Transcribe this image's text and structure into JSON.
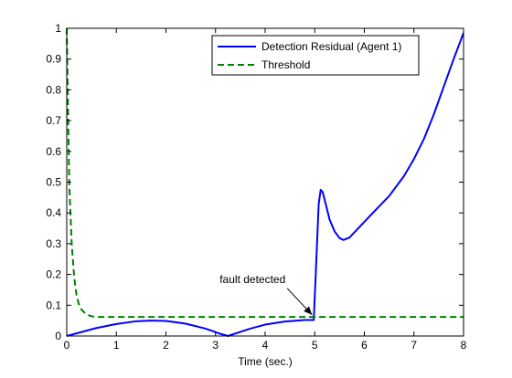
{
  "chart_data": {
    "type": "line",
    "title": "",
    "xlabel": "Time (sec.)",
    "ylabel": "",
    "xlim": [
      0,
      8
    ],
    "ylim": [
      0,
      1
    ],
    "xticks": [
      0,
      1,
      2,
      3,
      4,
      5,
      6,
      7,
      8
    ],
    "xtick_labels": [
      "0",
      "1",
      "2",
      "3",
      "4",
      "5",
      "6",
      "7",
      "8"
    ],
    "yticks": [
      0,
      0.1,
      0.2,
      0.3,
      0.4,
      0.5,
      0.6,
      0.7,
      0.8,
      0.9,
      1
    ],
    "ytick_labels": [
      "0",
      "0.1",
      "0.2",
      "0.3",
      "0.4",
      "0.5",
      "0.6",
      "0.7",
      "0.8",
      "0.9",
      "1"
    ],
    "grid": false,
    "legend_position": "top-right",
    "series": [
      {
        "name": "Detection Residual (Agent 1)",
        "color": "#0000ff",
        "style": "solid",
        "x": [
          0,
          0.3,
          0.6,
          1.0,
          1.4,
          1.7,
          2.0,
          2.4,
          2.8,
          3.1,
          3.25,
          3.4,
          3.7,
          4.0,
          4.4,
          4.8,
          4.98,
          5.02,
          5.08,
          5.12,
          5.16,
          5.22,
          5.3,
          5.4,
          5.5,
          5.58,
          5.7,
          5.9,
          6.2,
          6.5,
          6.8,
          7.0,
          7.2,
          7.4,
          7.6,
          7.8,
          8.0
        ],
        "y": [
          0.0,
          0.013,
          0.026,
          0.039,
          0.048,
          0.05,
          0.049,
          0.04,
          0.024,
          0.007,
          0.0,
          0.008,
          0.024,
          0.037,
          0.047,
          0.052,
          0.052,
          0.2,
          0.43,
          0.475,
          0.468,
          0.43,
          0.378,
          0.34,
          0.318,
          0.312,
          0.32,
          0.354,
          0.405,
          0.455,
          0.52,
          0.575,
          0.64,
          0.72,
          0.81,
          0.9,
          0.985
        ]
      },
      {
        "name": "Threshold",
        "color": "#008000",
        "style": "dashed",
        "x": [
          0.0,
          0.02,
          0.05,
          0.1,
          0.15,
          0.2,
          0.25,
          0.3,
          0.4,
          0.5,
          0.6,
          0.8,
          1.0,
          2.0,
          3.0,
          4.0,
          5.0,
          6.0,
          7.0,
          8.0
        ],
        "y": [
          1.0,
          0.79,
          0.5,
          0.3,
          0.19,
          0.13,
          0.1,
          0.085,
          0.07,
          0.064,
          0.062,
          0.062,
          0.062,
          0.062,
          0.062,
          0.062,
          0.062,
          0.062,
          0.062,
          0.062
        ]
      }
    ],
    "annotations": [
      {
        "text": "fault detected",
        "x": 5.0,
        "y": 0.06
      }
    ]
  }
}
